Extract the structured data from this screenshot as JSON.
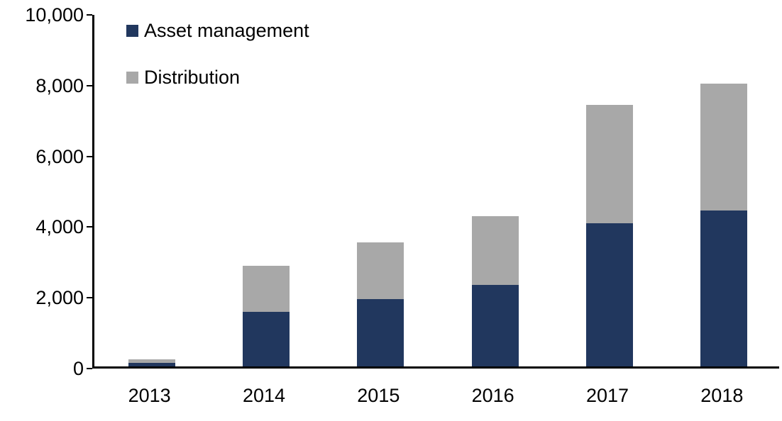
{
  "chart_data": {
    "type": "bar",
    "stacked": true,
    "title": "",
    "xlabel": "",
    "ylabel": "",
    "categories": [
      "2013",
      "2014",
      "2015",
      "2016",
      "2017",
      "2018"
    ],
    "series": [
      {
        "name": "Asset management",
        "color": "#21375E",
        "values": [
          100,
          1550,
          1900,
          2300,
          4050,
          4400
        ]
      },
      {
        "name": "Distribution",
        "color": "#A8A8A8",
        "values": [
          100,
          1300,
          1600,
          1950,
          3350,
          3600
        ]
      }
    ],
    "totals": [
      200,
      2850,
      3500,
      4250,
      7400,
      8000
    ],
    "ylim": [
      0,
      10000
    ],
    "ytick_interval": 2000,
    "yticks": [
      0,
      2000,
      4000,
      6000,
      8000,
      10000
    ],
    "ytick_labels": [
      "0",
      "2,000",
      "4,000",
      "6,000",
      "8,000",
      "10,000"
    ],
    "legend_position": "top-left",
    "grid": false,
    "axis_color": "#000000",
    "background_color": "#FFFFFF"
  }
}
